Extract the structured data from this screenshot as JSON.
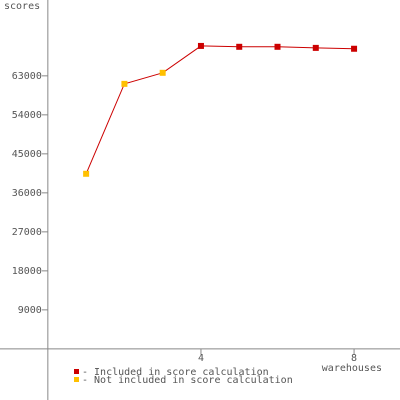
{
  "chart_data": {
    "type": "line",
    "y_label": "scores",
    "x_label": "warehouses",
    "x": [
      1,
      2,
      3,
      4,
      5,
      6,
      7,
      8
    ],
    "values": [
      40400,
      61150,
      63700,
      69900,
      69700,
      69700,
      69450,
      69250
    ],
    "line_color": "#cc0000",
    "legend": [
      {
        "name": "- Included in score calculation",
        "color": "#cc0000"
      },
      {
        "name": "- Not included in score calculation",
        "color": "#ffc000"
      }
    ],
    "point_legend": [
      1,
      1,
      1,
      0,
      0,
      0,
      0,
      0
    ],
    "xlim": [
      -1.25,
      9.2
    ],
    "ylim": [
      -11800,
      80500
    ],
    "xticks": [
      4,
      8
    ],
    "yticks": [
      9000,
      18000,
      27000,
      36000,
      45000,
      54000,
      63000
    ],
    "grid": false
  }
}
